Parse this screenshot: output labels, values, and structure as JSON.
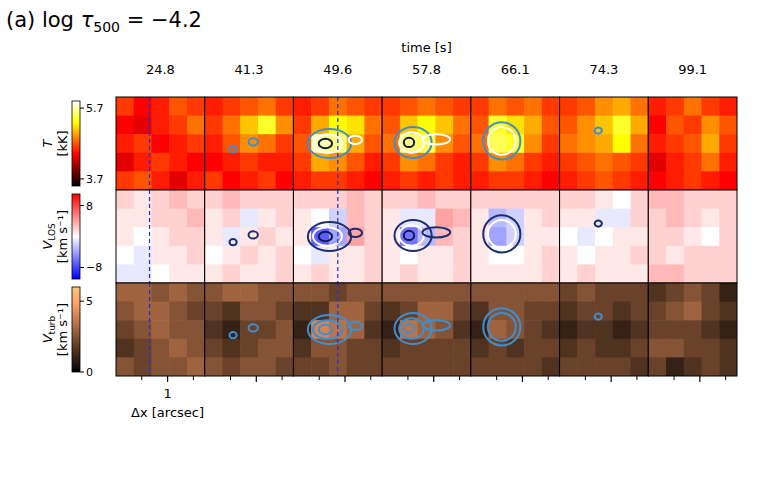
{
  "chart_data": {
    "type": "heatmap",
    "title": {
      "prefix": "(a) log ",
      "symbol": "τ",
      "subscript": "500",
      "suffix": " = −4.2"
    },
    "column_label": "time [s]",
    "columns": [
      24.8,
      41.3,
      49.6,
      57.8,
      66.1,
      74.3,
      99.1
    ],
    "x_label": "Δx [arcsec]",
    "xlim": [
      0,
      1.72
    ],
    "xticks": [
      1
    ],
    "minor_xticks": [
      0.5,
      1.5
    ],
    "ylim": [
      0,
      1.8
    ],
    "rows": [
      {
        "symbol": "T",
        "unit": "[kK]",
        "color": "hot",
        "clim": [
          3.5,
          5.9
        ],
        "cticks": [
          3.7,
          5.7
        ],
        "cells": [
          [
            [
              4.6,
              4.4,
              4.5,
              4.7,
              4.6
            ],
            [
              4.4,
              4.3,
              4.5,
              4.6,
              4.8
            ],
            [
              4.5,
              4.6,
              4.4,
              4.5,
              4.6
            ],
            [
              4.3,
              4.5,
              4.6,
              4.5,
              4.4
            ],
            [
              4.6,
              4.7,
              4.5,
              4.3,
              4.5
            ]
          ],
          [
            [
              4.5,
              4.6,
              4.7,
              4.8,
              4.6
            ],
            [
              4.6,
              4.8,
              5.1,
              5.4,
              4.9
            ],
            [
              4.5,
              4.7,
              4.9,
              4.8,
              4.6
            ],
            [
              4.4,
              4.5,
              4.6,
              4.5,
              4.5
            ],
            [
              4.6,
              4.4,
              4.5,
              4.6,
              4.4
            ]
          ],
          [
            [
              4.5,
              4.6,
              4.8,
              4.7,
              4.6
            ],
            [
              4.6,
              5.0,
              5.3,
              5.2,
              4.8
            ],
            [
              4.7,
              5.7,
              5.6,
              5.0,
              4.7
            ],
            [
              4.6,
              5.0,
              4.9,
              4.7,
              4.5
            ],
            [
              4.5,
              4.6,
              4.6,
              4.5,
              4.4
            ]
          ],
          [
            [
              4.6,
              4.7,
              4.8,
              4.7,
              4.6
            ],
            [
              4.7,
              5.1,
              5.3,
              5.1,
              4.8
            ],
            [
              4.8,
              5.6,
              5.5,
              4.9,
              4.7
            ],
            [
              4.6,
              4.9,
              4.8,
              4.6,
              4.5
            ],
            [
              4.5,
              4.6,
              4.5,
              4.6,
              4.5
            ]
          ],
          [
            [
              4.6,
              4.8,
              4.7,
              4.8,
              4.6
            ],
            [
              4.7,
              5.4,
              5.2,
              5.0,
              4.7
            ],
            [
              4.8,
              5.5,
              5.4,
              4.9,
              4.6
            ],
            [
              4.6,
              4.9,
              4.8,
              4.6,
              4.5
            ],
            [
              4.5,
              4.6,
              4.6,
              4.5,
              4.4
            ]
          ],
          [
            [
              4.6,
              4.7,
              4.9,
              5.0,
              4.8
            ],
            [
              4.7,
              4.9,
              5.1,
              5.4,
              5.0
            ],
            [
              4.8,
              4.9,
              5.0,
              5.3,
              4.8
            ],
            [
              4.6,
              4.7,
              4.8,
              4.7,
              4.6
            ],
            [
              4.5,
              4.6,
              4.7,
              4.6,
              4.5
            ]
          ],
          [
            [
              4.5,
              4.6,
              4.8,
              4.6,
              4.5
            ],
            [
              4.4,
              4.7,
              4.6,
              4.9,
              4.7
            ],
            [
              4.5,
              4.6,
              4.7,
              5.0,
              4.6
            ],
            [
              4.3,
              4.5,
              4.6,
              4.8,
              4.5
            ],
            [
              4.4,
              4.5,
              4.6,
              4.5,
              4.4
            ]
          ]
        ]
      },
      {
        "symbol": "V",
        "subscript": "LOS",
        "unit": "[km s⁻¹]",
        "color": "bwr",
        "clim": [
          -11,
          11
        ],
        "cticks": [
          -8,
          8
        ],
        "cells": [
          [
            [
              2,
              1,
              2,
              3,
              2
            ],
            [
              1,
              1,
              2,
              2,
              3
            ],
            [
              1,
              0,
              1,
              2,
              2
            ],
            [
              0,
              -1,
              1,
              1,
              2
            ],
            [
              -1,
              -1,
              0,
              1,
              1
            ]
          ],
          [
            [
              2,
              3,
              2,
              2,
              2
            ],
            [
              1,
              2,
              -1,
              1,
              2
            ],
            [
              1,
              -1,
              1,
              2,
              1
            ],
            [
              0,
              1,
              2,
              1,
              2
            ],
            [
              1,
              2,
              1,
              1,
              2
            ]
          ],
          [
            [
              2,
              2,
              2,
              3,
              2
            ],
            [
              1,
              0,
              -2,
              3,
              2
            ],
            [
              1,
              -7,
              -4,
              4,
              2
            ],
            [
              0,
              -1,
              1,
              1,
              2
            ],
            [
              1,
              2,
              1,
              1,
              2
            ]
          ],
          [
            [
              2,
              2,
              3,
              2,
              2
            ],
            [
              1,
              -1,
              -1,
              4,
              3
            ],
            [
              1,
              -6,
              -3,
              3,
              2
            ],
            [
              1,
              0,
              1,
              1,
              2
            ],
            [
              1,
              2,
              1,
              1,
              2
            ]
          ],
          [
            [
              2,
              2,
              2,
              2,
              2
            ],
            [
              1,
              -3,
              -2,
              1,
              2
            ],
            [
              1,
              -4,
              -2,
              1,
              1
            ],
            [
              1,
              0,
              0,
              1,
              2
            ],
            [
              1,
              1,
              1,
              1,
              2
            ]
          ],
          [
            [
              2,
              2,
              1,
              0,
              2
            ],
            [
              1,
              1,
              -1,
              -1,
              2
            ],
            [
              0,
              -1,
              0,
              1,
              1
            ],
            [
              1,
              0,
              1,
              1,
              2
            ],
            [
              1,
              2,
              1,
              1,
              1
            ]
          ],
          [
            [
              3,
              3,
              2,
              2,
              2
            ],
            [
              2,
              3,
              2,
              1,
              2
            ],
            [
              2,
              2,
              1,
              0,
              2
            ],
            [
              2,
              1,
              2,
              2,
              2
            ],
            [
              3,
              3,
              2,
              2,
              2
            ]
          ]
        ]
      },
      {
        "symbol": "V",
        "subscript": "turb",
        "unit": "[km s⁻¹]",
        "color": "copper",
        "clim": [
          0,
          6
        ],
        "cticks": [
          0,
          5
        ],
        "cells": [
          [
            [
              3,
              3,
              2.5,
              3,
              2.5
            ],
            [
              2.5,
              3,
              3,
              2.5,
              2
            ],
            [
              2,
              2.5,
              3,
              2.5,
              2.5
            ],
            [
              1.5,
              2,
              2.5,
              3,
              2.5
            ],
            [
              2.5,
              2,
              2.5,
              2.5,
              3
            ]
          ],
          [
            [
              2.5,
              3,
              3,
              2.5,
              2.5
            ],
            [
              2,
              1.5,
              2.5,
              2.5,
              2
            ],
            [
              1.5,
              1,
              2,
              2,
              2.5
            ],
            [
              2,
              1.5,
              2,
              2.5,
              2.5
            ],
            [
              2.5,
              2,
              2.5,
              2.5,
              2
            ]
          ],
          [
            [
              2.5,
              2.5,
              2,
              2.5,
              2.5
            ],
            [
              1.5,
              1.5,
              3,
              3,
              2
            ],
            [
              1,
              4,
              3.5,
              3,
              1.5
            ],
            [
              1.5,
              2.5,
              2.5,
              2,
              2
            ],
            [
              2,
              2,
              2.5,
              2,
              2
            ]
          ],
          [
            [
              2.5,
              2.5,
              2.5,
              2.5,
              2.5
            ],
            [
              1.5,
              2,
              3,
              3,
              2
            ],
            [
              1,
              3.5,
              3,
              2.5,
              1.5
            ],
            [
              1.5,
              2,
              2,
              2,
              2
            ],
            [
              2,
              2,
              2,
              2,
              2
            ]
          ],
          [
            [
              2.5,
              2.5,
              2.5,
              2.5,
              2.5
            ],
            [
              1.5,
              2.5,
              2.5,
              2,
              2
            ],
            [
              1,
              3,
              2.5,
              2,
              1.5
            ],
            [
              1.5,
              2,
              1.5,
              2,
              2
            ],
            [
              2,
              2,
              2,
              2,
              1.5
            ]
          ],
          [
            [
              2,
              2.5,
              2,
              2,
              2
            ],
            [
              1.5,
              2,
              2,
              1.5,
              2
            ],
            [
              1,
              1.5,
              1.5,
              1,
              1.5
            ],
            [
              1.5,
              2,
              1.5,
              1.5,
              2
            ],
            [
              2,
              2,
              2,
              2,
              1.5
            ]
          ],
          [
            [
              1.5,
              2,
              2.5,
              2,
              1
            ],
            [
              2,
              2.5,
              3,
              2,
              1.5
            ],
            [
              2,
              2,
              2,
              1.5,
              1
            ],
            [
              2.5,
              2.5,
              2,
              2,
              1.5
            ],
            [
              2,
              1,
              1.5,
              2,
              1.5
            ]
          ]
        ]
      }
    ],
    "dashed_lines": [
      {
        "column": 0,
        "x": 0.65
      },
      {
        "column": 2,
        "x": 0.86
      }
    ],
    "contours": [
      {
        "column": 1,
        "x": 0.55,
        "y": 0.79,
        "rx": 0.07,
        "ry": 0.06,
        "colors": [
          "#3d8fd1",
          "#1a2f6e",
          "#3d8fd1"
        ]
      },
      {
        "column": 1,
        "x": 0.94,
        "y": 0.93,
        "rx": 0.09,
        "ry": 0.07,
        "colors": [
          "#3d8fd1",
          "#1a2f6e",
          "#3d8fd1"
        ]
      },
      {
        "column": 2,
        "x": 0.7,
        "y": 0.9,
        "rx": 0.42,
        "ry": 0.28,
        "colors": [
          "#3d8fd1",
          "#1a2f6e",
          "#3d8fd1"
        ]
      },
      {
        "column": 2,
        "x": 0.66,
        "y": 0.9,
        "rx": 0.28,
        "ry": 0.18,
        "colors": [
          "#ffffff",
          "#ffffff",
          "#3d8fd1"
        ]
      },
      {
        "column": 2,
        "x": 0.62,
        "y": 0.9,
        "rx": 0.13,
        "ry": 0.09,
        "colors": [
          "#0d1a4a",
          "#0d1a4a",
          "#3d8fd1"
        ]
      },
      {
        "column": 2,
        "x": 1.2,
        "y": 0.97,
        "rx": 0.13,
        "ry": 0.08,
        "colors": [
          "#ffffff",
          "#1a2f6e",
          "#3d8fd1"
        ]
      },
      {
        "column": 3,
        "x": 0.6,
        "y": 0.92,
        "rx": 0.36,
        "ry": 0.3,
        "colors": [
          "#3d8fd1",
          "#1a2f6e",
          "#3d8fd1"
        ]
      },
      {
        "column": 3,
        "x": 0.57,
        "y": 0.92,
        "rx": 0.24,
        "ry": 0.2,
        "colors": [
          "#ffffff",
          "#ffffff",
          "#3d8fd1"
        ]
      },
      {
        "column": 3,
        "x": 0.52,
        "y": 0.92,
        "rx": 0.1,
        "ry": 0.09,
        "colors": [
          "#0d1a4a",
          "#0d1a4a",
          "#3d8fd1"
        ]
      },
      {
        "column": 3,
        "x": 1.05,
        "y": 0.98,
        "rx": 0.27,
        "ry": 0.1,
        "colors": [
          "#ffffff",
          "#1a2f6e",
          "#3d8fd1"
        ]
      },
      {
        "column": 4,
        "x": 0.6,
        "y": 0.95,
        "rx": 0.36,
        "ry": 0.36,
        "colors": [
          "#3d8fd1",
          "#1a2f6e",
          "#3d8fd1"
        ]
      },
      {
        "column": 4,
        "x": 0.6,
        "y": 0.95,
        "rx": 0.27,
        "ry": 0.27,
        "colors": [
          "#ffffff",
          "#ffffff",
          "#3d8fd1"
        ]
      },
      {
        "column": 5,
        "x": 0.75,
        "y": 1.15,
        "rx": 0.07,
        "ry": 0.06,
        "colors": [
          "#3d8fd1",
          "#1a2f6e",
          "#3d8fd1"
        ]
      }
    ]
  }
}
